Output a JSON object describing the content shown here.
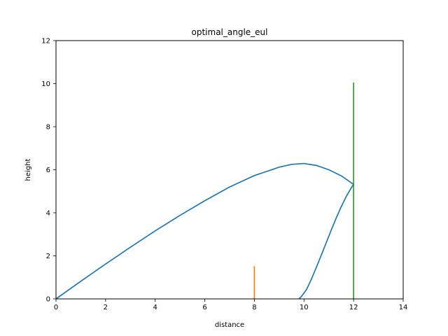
{
  "chart_data": {
    "type": "line",
    "title": "optimal_angle_eul",
    "xlabel": "distance",
    "ylabel": "height",
    "xlim": [
      0,
      14
    ],
    "ylim": [
      0,
      12
    ],
    "xticks": [
      0,
      2,
      4,
      6,
      8,
      10,
      12,
      14
    ],
    "yticks": [
      0,
      2,
      4,
      6,
      8,
      10,
      12
    ],
    "grid": false,
    "legend": "none",
    "series": [
      {
        "color": "#1f77b4",
        "x": [
          0,
          1,
          2,
          3,
          4,
          5,
          6,
          7,
          8,
          9,
          9.5,
          10,
          10.5,
          11,
          11.5,
          12,
          11.9,
          11.7,
          11.5,
          11.3,
          11.1,
          10.9,
          10.7,
          10.5,
          10.3,
          10.1,
          9.9,
          9.8
        ],
        "y": [
          0,
          0.82,
          1.62,
          2.4,
          3.16,
          3.88,
          4.56,
          5.2,
          5.73,
          6.12,
          6.25,
          6.29,
          6.2,
          6.0,
          5.72,
          5.32,
          5.15,
          4.75,
          4.28,
          3.76,
          3.2,
          2.62,
          2.04,
          1.47,
          0.92,
          0.43,
          0.12,
          0.0
        ]
      },
      {
        "color": "#ff7f0e",
        "x": [
          8,
          8
        ],
        "y": [
          0,
          1.52
        ]
      },
      {
        "color": "#2ca02c",
        "x": [
          12,
          12
        ],
        "y": [
          0,
          10.05
        ]
      }
    ]
  }
}
